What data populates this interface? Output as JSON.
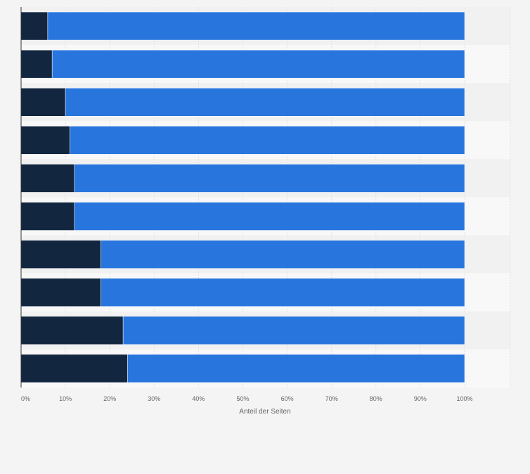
{
  "chart_data": {
    "type": "bar",
    "orientation": "horizontal",
    "stacked": true,
    "categories": [
      "",
      "",
      "",
      "",
      "",
      "",
      "",
      "",
      "",
      ""
    ],
    "series": [
      {
        "name": "",
        "color": "#12263f",
        "values": [
          6,
          7,
          10,
          11,
          12,
          12,
          18,
          18,
          23,
          24
        ]
      },
      {
        "name": "",
        "color": "#2876dd",
        "values": [
          94,
          93,
          90,
          89,
          88,
          88,
          82,
          82,
          77,
          76
        ]
      }
    ],
    "xlim": [
      0,
      100
    ],
    "xticks": [
      "0%",
      "10%",
      "20%",
      "30%",
      "40%",
      "50%",
      "60%",
      "70%",
      "80%",
      "90%",
      "100%"
    ],
    "xlabel": "Anteil der Seiten",
    "ylabel": "",
    "title": "",
    "grid": true,
    "legend": "none"
  }
}
